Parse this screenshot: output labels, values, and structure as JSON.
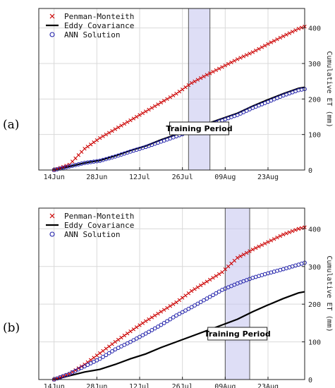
{
  "chart_data": [
    {
      "type": "line",
      "panel_label": "(a)",
      "ylabel": "Cumulative ET (mm)",
      "xlabel": "",
      "x_ticks": [
        "14Jun",
        "28Jun",
        "12Jul",
        "26Jul",
        "09Aug",
        "23Aug"
      ],
      "y_ticks": [
        "0",
        "100",
        "200",
        "300",
        "400"
      ],
      "xlim_days": [
        -5,
        82
      ],
      "ylim": [
        0,
        455
      ],
      "grid": true,
      "legend_position": "top-left",
      "training_period": {
        "label": "Training Period",
        "start_day": 44,
        "end_day": 51
      },
      "series": [
        {
          "name": "Penman-Monteith",
          "marker": "x",
          "color": "#cc0000",
          "points": [
            [
              0,
              0
            ],
            [
              5,
              15
            ],
            [
              10,
              60
            ],
            [
              15,
              90
            ],
            [
              20,
              115
            ],
            [
              25,
              140
            ],
            [
              30,
              165
            ],
            [
              35,
              190
            ],
            [
              40,
              215
            ],
            [
              45,
              245
            ],
            [
              50,
              268
            ],
            [
              55,
              290
            ],
            [
              60,
              312
            ],
            [
              65,
              332
            ],
            [
              70,
              355
            ],
            [
              75,
              377
            ],
            [
              80,
              398
            ],
            [
              82,
              404
            ]
          ]
        },
        {
          "name": "Eddy Covariance",
          "marker": "line",
          "color": "#000000",
          "points": [
            [
              0,
              0
            ],
            [
              5,
              10
            ],
            [
              10,
              20
            ],
            [
              15,
              27
            ],
            [
              20,
              40
            ],
            [
              25,
              55
            ],
            [
              30,
              68
            ],
            [
              35,
              85
            ],
            [
              40,
              100
            ],
            [
              45,
              115
            ],
            [
              50,
              130
            ],
            [
              55,
              145
            ],
            [
              60,
              160
            ],
            [
              65,
              180
            ],
            [
              70,
              198
            ],
            [
              75,
              215
            ],
            [
              80,
              230
            ],
            [
              82,
              233
            ]
          ]
        },
        {
          "name": "ANN Solution",
          "marker": "o",
          "color": "#2020aa",
          "points": [
            [
              0,
              0
            ],
            [
              5,
              10
            ],
            [
              10,
              20
            ],
            [
              15,
              26
            ],
            [
              20,
              38
            ],
            [
              25,
              52
            ],
            [
              30,
              65
            ],
            [
              35,
              80
            ],
            [
              40,
              95
            ],
            [
              45,
              110
            ],
            [
              50,
              125
            ],
            [
              55,
              140
            ],
            [
              60,
              155
            ],
            [
              65,
              175
            ],
            [
              70,
              192
            ],
            [
              75,
              210
            ],
            [
              80,
              225
            ],
            [
              82,
              228
            ]
          ]
        }
      ]
    },
    {
      "type": "line",
      "panel_label": "(b)",
      "ylabel": "Cumulative ET (mm)",
      "xlabel": "",
      "x_ticks": [
        "14Jun",
        "28Jun",
        "12Jul",
        "26Jul",
        "09Aug",
        "23Aug"
      ],
      "y_ticks": [
        "0",
        "100",
        "200",
        "300",
        "400"
      ],
      "xlim_days": [
        -5,
        82
      ],
      "ylim": [
        0,
        455
      ],
      "grid": true,
      "legend_position": "top-left",
      "training_period": {
        "label": "Training Period",
        "start_day": 56,
        "end_day": 64
      },
      "series": [
        {
          "name": "Penman-Monteith",
          "marker": "x",
          "color": "#cc0000",
          "points": [
            [
              0,
              0
            ],
            [
              5,
              15
            ],
            [
              10,
              40
            ],
            [
              15,
              70
            ],
            [
              20,
              100
            ],
            [
              25,
              128
            ],
            [
              30,
              155
            ],
            [
              35,
              180
            ],
            [
              40,
              205
            ],
            [
              45,
              235
            ],
            [
              50,
              260
            ],
            [
              55,
              285
            ],
            [
              60,
              323
            ],
            [
              65,
              345
            ],
            [
              70,
              365
            ],
            [
              75,
              385
            ],
            [
              80,
              400
            ],
            [
              82,
              404
            ]
          ]
        },
        {
          "name": "Eddy Covariance",
          "marker": "line",
          "color": "#000000",
          "points": [
            [
              0,
              0
            ],
            [
              5,
              10
            ],
            [
              10,
              20
            ],
            [
              15,
              27
            ],
            [
              20,
              40
            ],
            [
              25,
              55
            ],
            [
              30,
              68
            ],
            [
              35,
              85
            ],
            [
              40,
              100
            ],
            [
              45,
              115
            ],
            [
              50,
              130
            ],
            [
              55,
              145
            ],
            [
              60,
              160
            ],
            [
              65,
              180
            ],
            [
              70,
              198
            ],
            [
              75,
              215
            ],
            [
              80,
              230
            ],
            [
              82,
              233
            ]
          ]
        },
        {
          "name": "ANN Solution",
          "marker": "o",
          "color": "#2020aa",
          "points": [
            [
              0,
              0
            ],
            [
              5,
              15
            ],
            [
              10,
              35
            ],
            [
              15,
              55
            ],
            [
              20,
              80
            ],
            [
              25,
              100
            ],
            [
              30,
              122
            ],
            [
              35,
              145
            ],
            [
              40,
              170
            ],
            [
              45,
              192
            ],
            [
              50,
              215
            ],
            [
              55,
              238
            ],
            [
              60,
              255
            ],
            [
              65,
              270
            ],
            [
              70,
              282
            ],
            [
              75,
              293
            ],
            [
              80,
              305
            ],
            [
              82,
              310
            ]
          ]
        }
      ]
    }
  ]
}
